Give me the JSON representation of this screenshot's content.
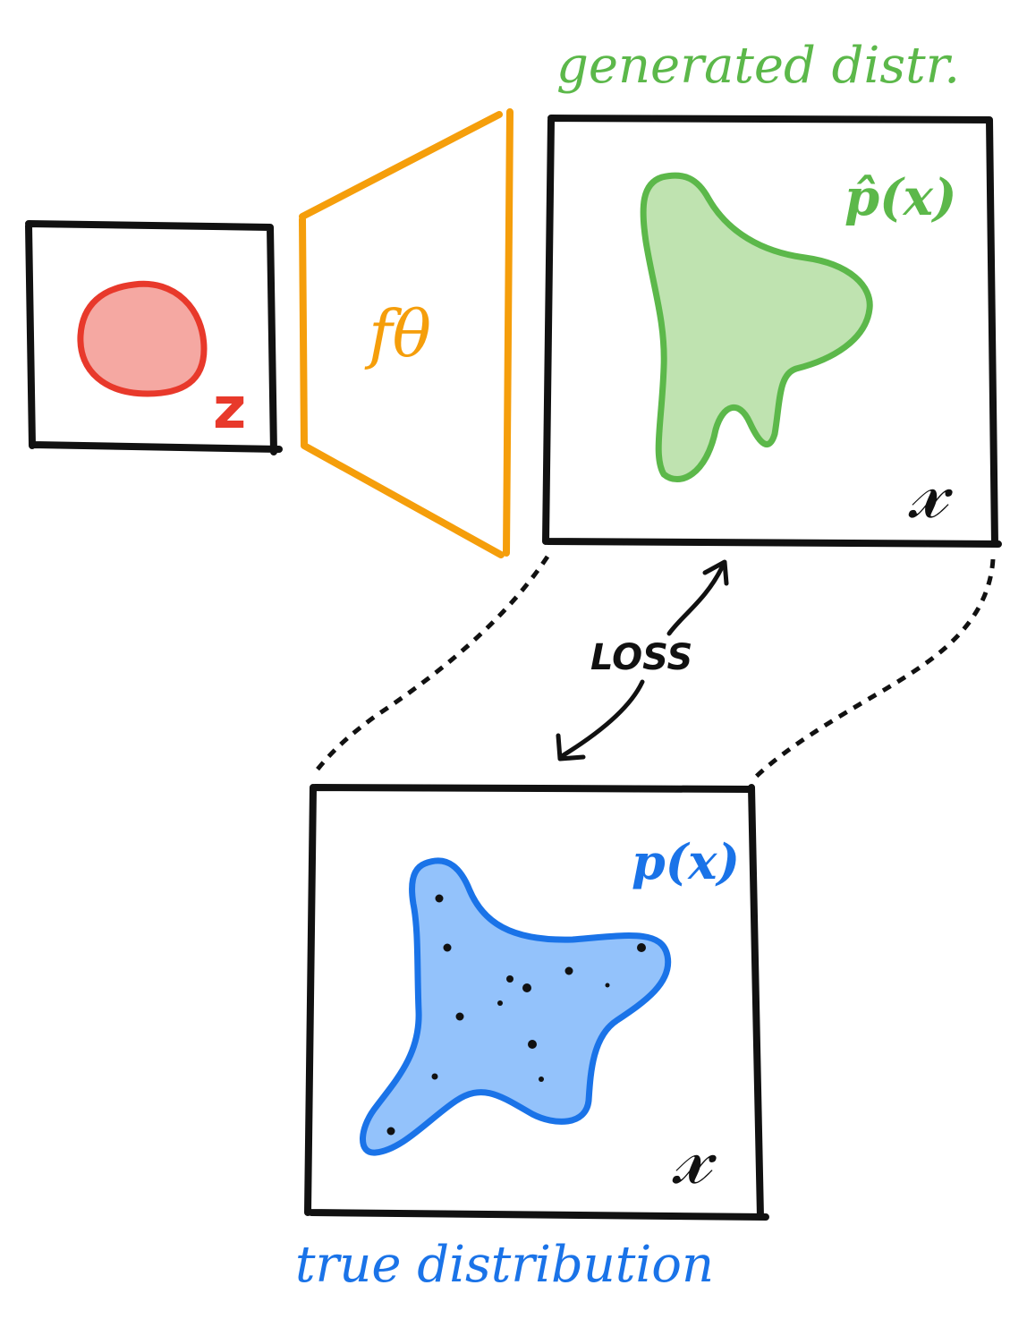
{
  "labels": {
    "latent": "z",
    "generator": "fθ",
    "generated_title": "generated distr.",
    "generated_density": "p̂(x)",
    "generated_space": "𝓍",
    "loss": "LOSS",
    "true_density": "p(x)",
    "true_space": "𝓍",
    "true_title": "true distribution"
  },
  "colors": {
    "ink": "#111111",
    "latent_stroke": "#e8392b",
    "latent_fill": "#f5a8a2",
    "generator": "#f59e0b",
    "generated_stroke": "#5cb84a",
    "generated_fill": "#bfe3b0",
    "true_stroke": "#1a73e8",
    "true_fill": "#93c2fb",
    "samples": "#111111"
  }
}
